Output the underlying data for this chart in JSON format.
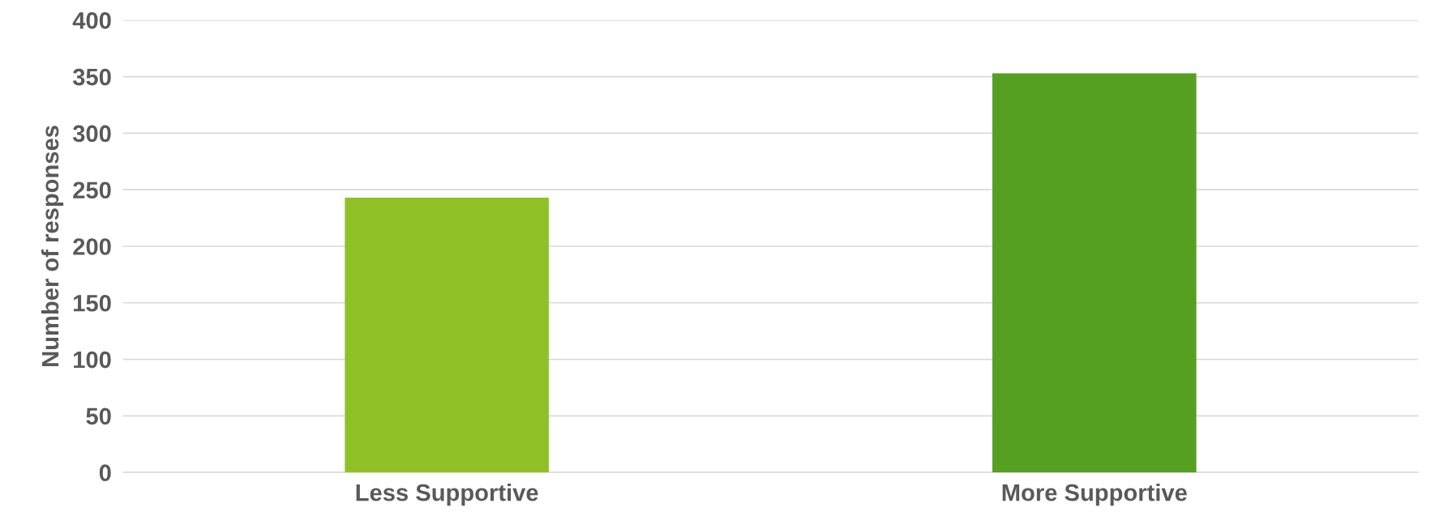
{
  "chart_data": {
    "type": "bar",
    "ylabel": "Number of responses",
    "categories": [
      "Less Supportive",
      "More Supportive"
    ],
    "values": [
      243,
      353
    ],
    "colors": [
      "#8fc126",
      "#55a021"
    ],
    "ylim": [
      0,
      400
    ],
    "yticks": [
      0,
      50,
      100,
      150,
      200,
      250,
      300,
      350,
      400
    ],
    "grid": "y",
    "legend": false
  }
}
